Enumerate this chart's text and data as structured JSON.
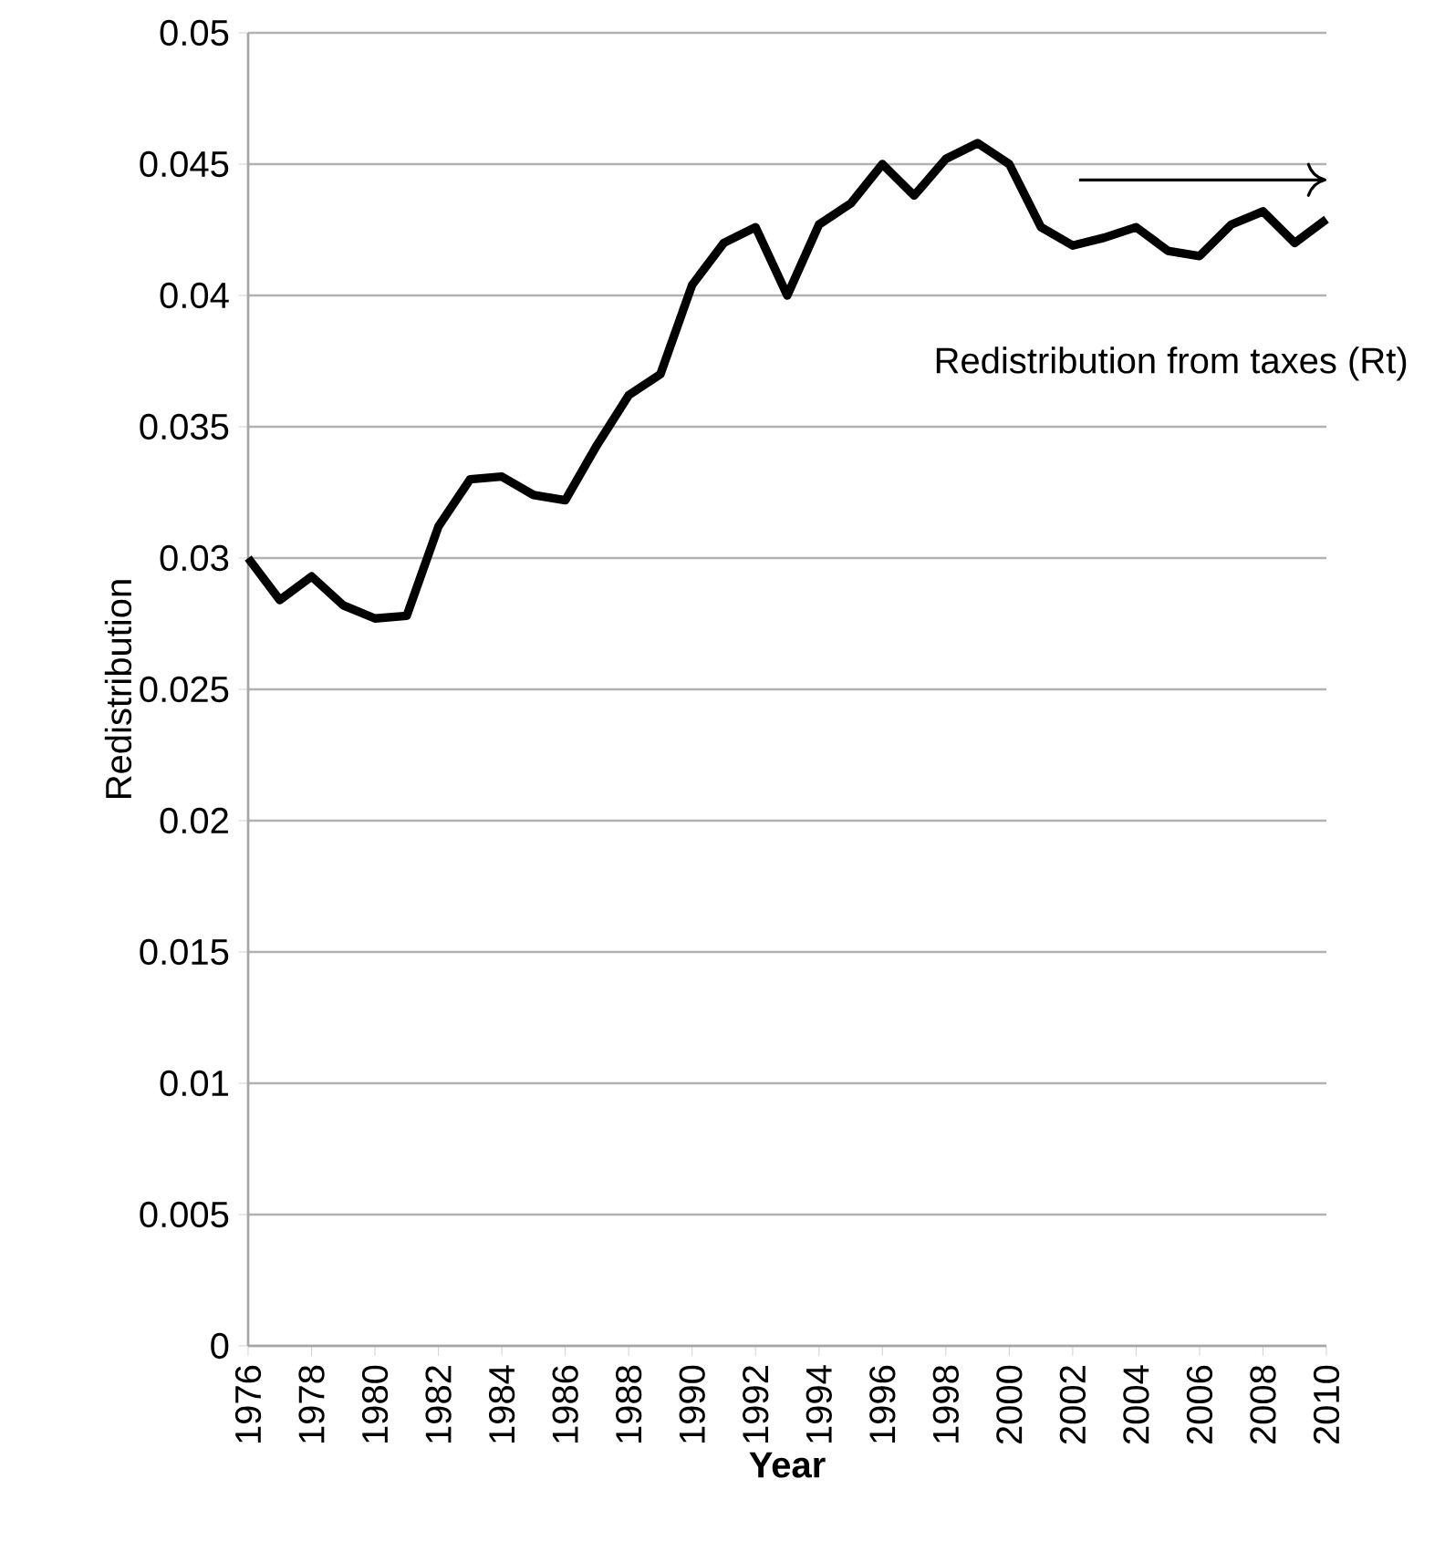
{
  "chart_data": {
    "type": "line",
    "xlabel": "Year",
    "ylabel": "Redistribution",
    "annotations": [
      "Redistribution from taxes (Rt)"
    ],
    "x": [
      1976,
      1977,
      1978,
      1979,
      1980,
      1981,
      1982,
      1983,
      1984,
      1985,
      1986,
      1987,
      1988,
      1989,
      1990,
      1991,
      1992,
      1993,
      1994,
      1995,
      1996,
      1997,
      1998,
      1999,
      2000,
      2001,
      2002,
      2003,
      2004,
      2005,
      2006,
      2007,
      2008,
      2009,
      2010
    ],
    "series": [
      {
        "color": "#000000",
        "values": [
          0.03,
          0.0284,
          0.0293,
          0.0282,
          0.0277,
          0.0278,
          0.0312,
          0.033,
          0.0331,
          0.0324,
          0.0322,
          0.0343,
          0.0362,
          0.037,
          0.0404,
          0.042,
          0.0426,
          0.04,
          0.0427,
          0.0435,
          0.045,
          0.0438,
          0.0452,
          0.0458,
          0.045,
          0.0426,
          0.0419,
          0.0422,
          0.0426,
          0.0417,
          0.0415,
          0.0427,
          0.0432,
          0.042,
          0.0429
        ]
      }
    ],
    "xlim": [
      1976,
      2010
    ],
    "xticks": [
      1976,
      1978,
      1980,
      1982,
      1984,
      1986,
      1988,
      1990,
      1992,
      1994,
      1996,
      1998,
      2000,
      2002,
      2004,
      2006,
      2008,
      2010
    ],
    "ylim": [
      0,
      0.05
    ],
    "yticks": [
      {
        "value": 0,
        "label": "0"
      },
      {
        "value": 0.005,
        "label": "0.005"
      },
      {
        "value": 0.01,
        "label": "0.01"
      },
      {
        "value": 0.015,
        "label": "0.015"
      },
      {
        "value": 0.02,
        "label": "0.02"
      },
      {
        "value": 0.025,
        "label": "0.025"
      },
      {
        "value": 0.03,
        "label": "0.03"
      },
      {
        "value": 0.035,
        "label": "0.035"
      },
      {
        "value": 0.04,
        "label": "0.04"
      },
      {
        "value": 0.045,
        "label": "0.045"
      },
      {
        "value": 0.05,
        "label": "0.05"
      }
    ],
    "grid": "y",
    "marker": "none",
    "line_style": "solid"
  }
}
